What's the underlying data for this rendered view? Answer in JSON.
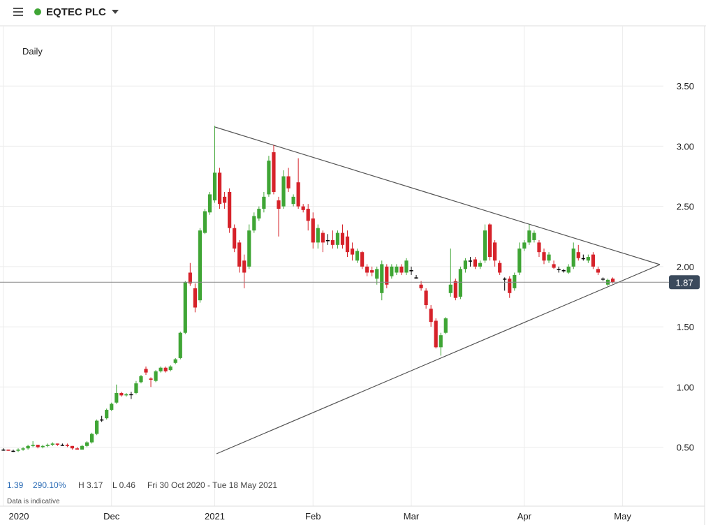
{
  "header": {
    "title": "EQTEC PLC"
  },
  "chart_data": {
    "type": "candlestick",
    "interval": "Daily",
    "up_color": "#3fa535",
    "down_color": "#d6222a",
    "flat_color": "#000000",
    "open": [
      0.48,
      0.48,
      0.47,
      0.47,
      0.48,
      0.49,
      0.51,
      0.52,
      0.5,
      0.51,
      0.52,
      0.53,
      0.52,
      0.52,
      0.51,
      0.49,
      0.48,
      0.51,
      0.54,
      0.61,
      0.73,
      0.74,
      0.81,
      0.87,
      0.95,
      0.93,
      0.94,
      0.95,
      1.04,
      1.15,
      1.07,
      1.05,
      1.13,
      1.16,
      1.14,
      1.2,
      1.24,
      1.45,
      1.95,
      1.82,
      1.72,
      2.28,
      2.45,
      2.55,
      2.78,
      2.58,
      2.62,
      2.32,
      2.2,
      2.05,
      2.0,
      2.3,
      2.4,
      2.48,
      2.6,
      2.95,
      2.55,
      2.5,
      2.75,
      2.52,
      2.7,
      2.5,
      2.48,
      2.4,
      2.2,
      2.28,
      2.22,
      2.22,
      2.18,
      2.28,
      2.25,
      2.15,
      2.05,
      2.12,
      2.0,
      1.97,
      1.9,
      1.78,
      2.0,
      1.92,
      1.95,
      2.0,
      1.95,
      1.97,
      1.91,
      1.85,
      1.8,
      1.65,
      1.55,
      1.33,
      1.45,
      1.78,
      1.88,
      1.75,
      1.98,
      2.05,
      2.06,
      2.0,
      2.05,
      2.35,
      2.2,
      2.03,
      1.9,
      1.9,
      1.82,
      1.95,
      2.15,
      2.2,
      2.22,
      2.2,
      2.12,
      2.05,
      2.02,
      1.98,
      1.97,
      1.95,
      2.0,
      2.12,
      2.07,
      2.05,
      2.1,
      1.98,
      1.9,
      1.85,
      1.9
    ],
    "high": [
      0.49,
      0.48,
      0.48,
      0.49,
      0.5,
      0.52,
      0.55,
      0.52,
      0.52,
      0.53,
      0.54,
      0.53,
      0.53,
      0.53,
      0.51,
      0.5,
      0.52,
      0.55,
      0.62,
      0.73,
      0.76,
      0.82,
      0.87,
      1.02,
      0.96,
      0.95,
      0.96,
      1.05,
      1.1,
      1.17,
      1.08,
      1.14,
      1.17,
      1.17,
      1.18,
      1.24,
      1.46,
      1.88,
      2.03,
      1.86,
      2.32,
      2.48,
      2.62,
      3.17,
      2.82,
      2.62,
      2.65,
      2.35,
      2.22,
      2.1,
      2.35,
      2.45,
      2.5,
      2.62,
      2.92,
      3.01,
      2.58,
      2.8,
      2.82,
      2.6,
      2.9,
      2.52,
      2.52,
      2.45,
      2.35,
      2.3,
      2.27,
      2.3,
      2.3,
      2.35,
      2.3,
      2.2,
      2.15,
      2.13,
      2.02,
      2.0,
      2.0,
      2.05,
      2.02,
      2.02,
      2.02,
      2.02,
      2.07,
      2.0,
      1.93,
      1.88,
      1.82,
      1.68,
      1.57,
      1.45,
      1.58,
      2.15,
      1.9,
      2.0,
      2.07,
      2.08,
      2.08,
      2.05,
      2.35,
      2.36,
      2.22,
      2.05,
      1.91,
      1.92,
      1.95,
      2.2,
      2.22,
      2.35,
      2.3,
      2.22,
      2.15,
      2.12,
      2.05,
      2.0,
      1.98,
      2.02,
      2.2,
      2.18,
      2.1,
      2.1,
      2.12,
      2.0,
      1.91,
      1.9,
      1.91
    ],
    "low": [
      0.47,
      0.47,
      0.46,
      0.46,
      0.47,
      0.48,
      0.5,
      0.49,
      0.49,
      0.5,
      0.51,
      0.51,
      0.51,
      0.5,
      0.48,
      0.48,
      0.48,
      0.5,
      0.53,
      0.6,
      0.71,
      0.73,
      0.8,
      0.86,
      0.92,
      0.92,
      0.9,
      0.94,
      1.03,
      1.1,
      1.0,
      1.04,
      1.12,
      1.12,
      1.13,
      1.19,
      1.23,
      1.44,
      1.84,
      1.62,
      1.7,
      2.27,
      2.43,
      2.53,
      2.48,
      2.48,
      2.28,
      2.12,
      1.95,
      1.82,
      1.98,
      2.28,
      2.38,
      2.45,
      2.58,
      2.6,
      2.25,
      2.48,
      2.62,
      2.5,
      2.48,
      2.45,
      2.3,
      2.15,
      2.15,
      2.12,
      2.18,
      2.15,
      2.15,
      2.15,
      2.08,
      2.05,
      2.03,
      1.98,
      1.92,
      1.92,
      1.85,
      1.72,
      1.82,
      1.9,
      1.93,
      1.93,
      1.93,
      1.93,
      1.9,
      1.8,
      1.65,
      1.5,
      1.32,
      1.26,
      1.44,
      1.75,
      1.72,
      1.73,
      1.95,
      2.0,
      1.98,
      1.98,
      2.03,
      2.05,
      2.0,
      1.93,
      1.8,
      1.74,
      1.8,
      1.93,
      2.13,
      2.18,
      2.2,
      2.08,
      2.02,
      2.03,
      1.98,
      1.95,
      1.95,
      1.94,
      1.98,
      2.05,
      2.05,
      2.03,
      1.98,
      1.93,
      1.88,
      1.84,
      1.86
    ],
    "close": [
      0.48,
      0.47,
      0.47,
      0.48,
      0.49,
      0.51,
      0.52,
      0.5,
      0.51,
      0.52,
      0.53,
      0.52,
      0.52,
      0.51,
      0.49,
      0.48,
      0.51,
      0.54,
      0.61,
      0.72,
      0.73,
      0.81,
      0.86,
      0.95,
      0.93,
      0.94,
      0.94,
      1.03,
      1.09,
      1.12,
      1.06,
      1.13,
      1.16,
      1.13,
      1.17,
      1.23,
      1.45,
      1.87,
      1.86,
      1.66,
      2.3,
      2.46,
      2.6,
      2.78,
      2.52,
      2.53,
      2.32,
      2.15,
      2.0,
      1.95,
      2.3,
      2.42,
      2.48,
      2.58,
      2.88,
      2.62,
      2.48,
      2.75,
      2.65,
      2.58,
      2.5,
      2.47,
      2.38,
      2.2,
      2.32,
      2.2,
      2.22,
      2.18,
      2.28,
      2.18,
      2.12,
      2.1,
      2.13,
      2.0,
      1.95,
      1.95,
      1.98,
      2.02,
      1.85,
      2.0,
      2.0,
      1.95,
      2.05,
      1.97,
      1.91,
      1.82,
      1.68,
      1.54,
      1.33,
      1.43,
      1.57,
      1.85,
      1.74,
      1.98,
      2.05,
      2.05,
      2.0,
      2.03,
      2.3,
      2.08,
      2.05,
      1.95,
      1.9,
      1.78,
      1.93,
      2.15,
      2.2,
      2.3,
      2.28,
      2.12,
      2.05,
      2.1,
      1.99,
      1.98,
      1.97,
      2.0,
      2.15,
      2.07,
      2.07,
      2.08,
      2.0,
      1.95,
      1.9,
      1.89,
      1.87
    ],
    "xlim": [
      -0.7,
      134.3
    ],
    "xticks": [
      {
        "value": 0,
        "label": "2020"
      },
      {
        "value": 22,
        "label": "Dec"
      },
      {
        "value": 43,
        "label": "2021"
      },
      {
        "value": 63,
        "label": "Feb"
      },
      {
        "value": 83,
        "label": "Mar"
      },
      {
        "value": 106,
        "label": "Apr"
      },
      {
        "value": 126,
        "label": "May"
      }
    ],
    "ylim": [
      0.01,
      4.0
    ],
    "yticks": [
      {
        "value": 0.5,
        "label": "0.50"
      },
      {
        "value": 1,
        "label": "1.00"
      },
      {
        "value": 1.5,
        "label": "1.50"
      },
      {
        "value": 2,
        "label": "2.00"
      },
      {
        "value": 2.5,
        "label": "2.50"
      },
      {
        "value": 3,
        "label": "3.00"
      },
      {
        "value": 3.5,
        "label": "3.50"
      }
    ],
    "grid": true,
    "last_price": 1.87
  },
  "footer": {
    "change": "1.39",
    "change_pct": "290.10%",
    "high": "H 3.17",
    "low": "L 0.46",
    "range": "Fri 30 Oct 2020 - Tue 18 May 2021",
    "note": "Data is indicative"
  }
}
